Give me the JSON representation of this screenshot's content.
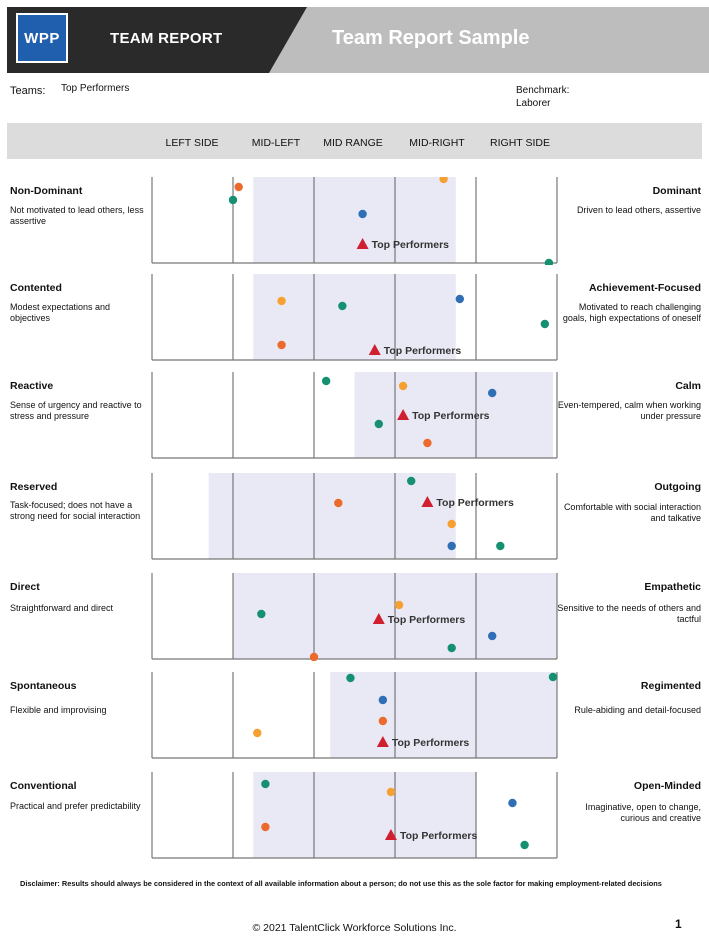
{
  "header": {
    "logo_text": "WPP",
    "report_label": "TEAM REPORT",
    "title": "Team Report Sample"
  },
  "meta": {
    "teams_label": "Teams:",
    "teams_value": "Top Performers",
    "benchmark_label": "Benchmark:",
    "benchmark_value": "Laborer"
  },
  "columns": [
    "LEFT SIDE",
    "MID-LEFT",
    "MID RANGE",
    "MID-RIGHT",
    "RIGHT SIDE"
  ],
  "colors": {
    "dark_orange": "#ec6a2c",
    "light_orange": "#f7a032",
    "blue": "#2f6fb5",
    "green": "#159070",
    "marker_red": "#d01f2e",
    "band": "#e9e9f5"
  },
  "traits": [
    {
      "left_name": "Non-Dominant",
      "left_desc": "Not motivated to lead others, less assertive",
      "right_name": "Dominant",
      "right_desc": "Driven to lead others, assertive",
      "band": [
        1.25,
        3.75
      ],
      "team_label": "Top Performers",
      "team_pos": 2.6,
      "dots": [
        {
          "c": "dark_orange",
          "x": 1.07
        },
        {
          "c": "green",
          "x": 1.0
        },
        {
          "c": "light_orange",
          "x": 3.6
        },
        {
          "c": "blue",
          "x": 2.6
        },
        {
          "c": "green",
          "x": 4.9
        }
      ]
    },
    {
      "left_name": "Contented",
      "left_desc": "Modest expectations and objectives",
      "right_name": "Achievement-Focused",
      "right_desc": "Motivated to reach challenging goals, high expectations of oneself",
      "band": [
        1.25,
        3.75
      ],
      "team_label": "Top Performers",
      "team_pos": 2.75,
      "dots": [
        {
          "c": "light_orange",
          "x": 1.6
        },
        {
          "c": "green",
          "x": 2.35
        },
        {
          "c": "blue",
          "x": 3.8
        },
        {
          "c": "green",
          "x": 4.85
        },
        {
          "c": "dark_orange",
          "x": 1.6
        }
      ]
    },
    {
      "left_name": "Reactive",
      "left_desc": "Sense of urgency and reactive to stress and pressure",
      "right_name": "Calm",
      "right_desc": "Even-tempered, calm when working under pressure",
      "band": [
        2.5,
        4.95
      ],
      "team_label": "Top Performers",
      "team_pos": 3.1,
      "dots": [
        {
          "c": "green",
          "x": 2.15
        },
        {
          "c": "light_orange",
          "x": 3.1
        },
        {
          "c": "blue",
          "x": 4.2
        },
        {
          "c": "green",
          "x": 2.8
        },
        {
          "c": "dark_orange",
          "x": 3.4
        }
      ]
    },
    {
      "left_name": "Reserved",
      "left_desc": "Task-focused; does not have a strong need for social interaction",
      "right_name": "Outgoing",
      "right_desc": "Comfortable with social interaction and talkative",
      "band": [
        0.7,
        3.75
      ],
      "team_label": "Top Performers",
      "team_pos": 3.4,
      "dots": [
        {
          "c": "green",
          "x": 3.2
        },
        {
          "c": "dark_orange",
          "x": 2.3
        },
        {
          "c": "light_orange",
          "x": 3.7
        },
        {
          "c": "blue",
          "x": 3.7
        },
        {
          "c": "green",
          "x": 4.3
        }
      ]
    },
    {
      "left_name": "Direct",
      "left_desc": "Straightforward and direct",
      "right_name": "Empathetic",
      "right_desc": "Sensitive to the needs of others and tactful",
      "band": [
        1.0,
        5.0
      ],
      "team_label": "Top Performers",
      "team_pos": 2.8,
      "dots": [
        {
          "c": "light_orange",
          "x": 3.05
        },
        {
          "c": "green",
          "x": 1.35
        },
        {
          "c": "blue",
          "x": 4.2
        },
        {
          "c": "green",
          "x": 3.7
        },
        {
          "c": "dark_orange",
          "x": 2.0
        }
      ]
    },
    {
      "left_name": "Spontaneous",
      "left_desc": "Flexible and improvising",
      "right_name": "Regimented",
      "right_desc": "Rule-abiding and detail-focused",
      "band": [
        2.2,
        5.0
      ],
      "team_label": "Top Performers",
      "team_pos": 2.85,
      "dots": [
        {
          "c": "green",
          "x": 2.45
        },
        {
          "c": "green",
          "x": 4.95
        },
        {
          "c": "blue",
          "x": 2.85
        },
        {
          "c": "dark_orange",
          "x": 2.85
        },
        {
          "c": "light_orange",
          "x": 1.3
        }
      ]
    },
    {
      "left_name": "Conventional",
      "left_desc": "Practical and prefer predictability",
      "right_name": "Open-Minded",
      "right_desc": "Imaginative, open to change, curious and creative",
      "band": [
        1.25,
        4.0
      ],
      "team_label": "Top Performers",
      "team_pos": 2.95,
      "dots": [
        {
          "c": "green",
          "x": 1.4
        },
        {
          "c": "light_orange",
          "x": 2.95
        },
        {
          "c": "blue",
          "x": 4.45
        },
        {
          "c": "dark_orange",
          "x": 1.4
        },
        {
          "c": "green",
          "x": 4.6
        }
      ]
    }
  ],
  "disclaimer": "Disclaimer: Results should always be considered in the context of all available information about a person; do not use this as the sole factor for making employment-related decisions",
  "copyright": "© 2021 TalentClick Workforce Solutions Inc.",
  "page_number": "1"
}
